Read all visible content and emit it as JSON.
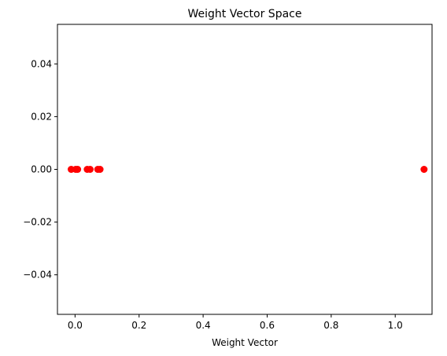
{
  "chart_data": {
    "type": "scatter",
    "title": "Weight Vector Space",
    "xlabel": "Weight Vector",
    "ylabel": "",
    "xlim": [
      -0.055,
      1.115
    ],
    "ylim": [
      -0.055,
      0.055
    ],
    "x_ticks": [
      0.0,
      0.2,
      0.4,
      0.6,
      0.8,
      1.0
    ],
    "x_tick_labels": [
      "0.0",
      "0.2",
      "0.4",
      "0.6",
      "0.8",
      "1.0"
    ],
    "y_ticks": [
      0.04,
      0.02,
      0.0,
      -0.02,
      -0.04
    ],
    "y_tick_labels": [
      "0.04",
      "0.02",
      "0.00",
      "−0.02",
      "−0.04"
    ],
    "grid": false,
    "marker_color": "#ff0000",
    "points": [
      {
        "x": -0.012,
        "y": 0
      },
      {
        "x": 0.002,
        "y": 0
      },
      {
        "x": 0.008,
        "y": 0
      },
      {
        "x": 0.038,
        "y": 0
      },
      {
        "x": 0.047,
        "y": 0
      },
      {
        "x": 0.071,
        "y": 0
      },
      {
        "x": 0.078,
        "y": 0
      },
      {
        "x": 1.09,
        "y": 0
      }
    ]
  }
}
